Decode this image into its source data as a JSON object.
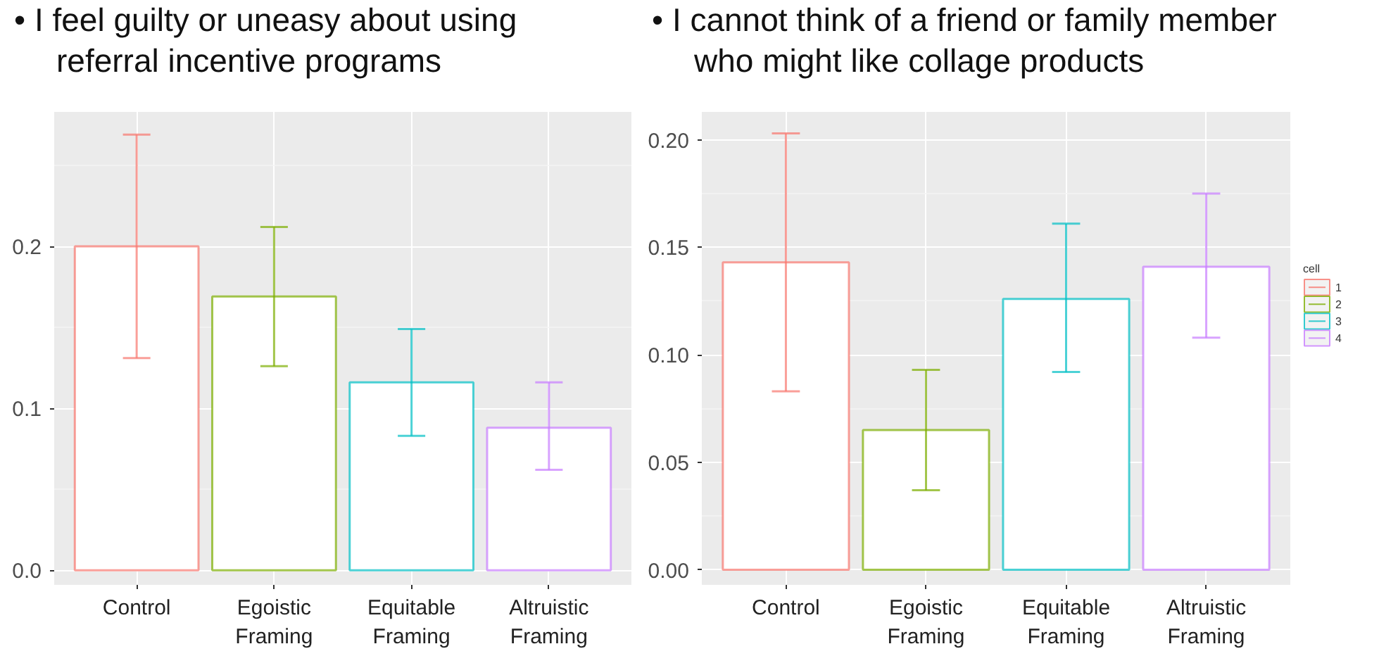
{
  "chart_data": [
    {
      "type": "bar",
      "title": "• I feel guilty or uneasy about using referral incentive programs",
      "categories": [
        "Control",
        "Egoistic Framing",
        "Equitable Framing",
        "Altruistic Framing"
      ],
      "series": [
        {
          "color": "#f8766d",
          "values": [
            0.2,
            null,
            null,
            null
          ],
          "errors": [
            [
              0.131,
              0.269
            ],
            null,
            null,
            null
          ]
        },
        {
          "color": "#7cae00",
          "values": [
            null,
            0.169,
            null,
            null
          ],
          "errors": [
            null,
            [
              0.126,
              0.212
            ],
            null,
            null
          ]
        },
        {
          "color": "#00bfc4",
          "values": [
            null,
            null,
            0.116,
            null
          ],
          "errors": [
            null,
            null,
            [
              0.083,
              0.149
            ],
            null
          ]
        },
        {
          "color": "#c77cff",
          "values": [
            null,
            null,
            null,
            0.088
          ],
          "errors": [
            null,
            null,
            null,
            [
              0.062,
              0.116
            ]
          ]
        }
      ],
      "ylim": [
        -0.009,
        0.283
      ],
      "yticks": [
        {
          "value": 0,
          "label": "0.0"
        },
        0.1,
        0.2
      ],
      "grid": true
    },
    {
      "type": "bar",
      "title": "• I cannot think of a friend or family member who might like collage products",
      "categories": [
        "Control",
        "Egoistic Framing",
        "Equitable Framing",
        "Altruistic Framing"
      ],
      "series": [
        {
          "name": "1",
          "color": "#f8766d",
          "values": [
            0.143,
            null,
            null,
            null
          ],
          "errors": [
            [
              0.083,
              0.203
            ],
            null,
            null,
            null
          ]
        },
        {
          "name": "2",
          "color": "#7cae00",
          "values": [
            null,
            0.065,
            null,
            null
          ],
          "errors": [
            null,
            [
              0.037,
              0.093
            ],
            null,
            null
          ]
        },
        {
          "name": "3",
          "color": "#00bfc4",
          "values": [
            null,
            null,
            0.126,
            null
          ],
          "errors": [
            null,
            null,
            [
              0.092,
              0.161
            ],
            null
          ]
        },
        {
          "name": "4",
          "color": "#c77cff",
          "values": [
            null,
            null,
            null,
            0.141
          ],
          "errors": [
            null,
            null,
            null,
            [
              0.108,
              0.175
            ]
          ]
        }
      ],
      "ylim": [
        -0.007,
        0.213
      ],
      "yticks": [
        {
          "value": 0,
          "label": "0.00"
        },
        {
          "value": 0.05,
          "label": "0.05"
        },
        {
          "value": 0.1,
          "label": "0.10"
        },
        {
          "value": 0.15,
          "label": "0.15"
        },
        {
          "value": 0.2,
          "label": "0.20"
        }
      ],
      "grid": true,
      "legend": "right",
      "legend_title": "cell"
    }
  ]
}
